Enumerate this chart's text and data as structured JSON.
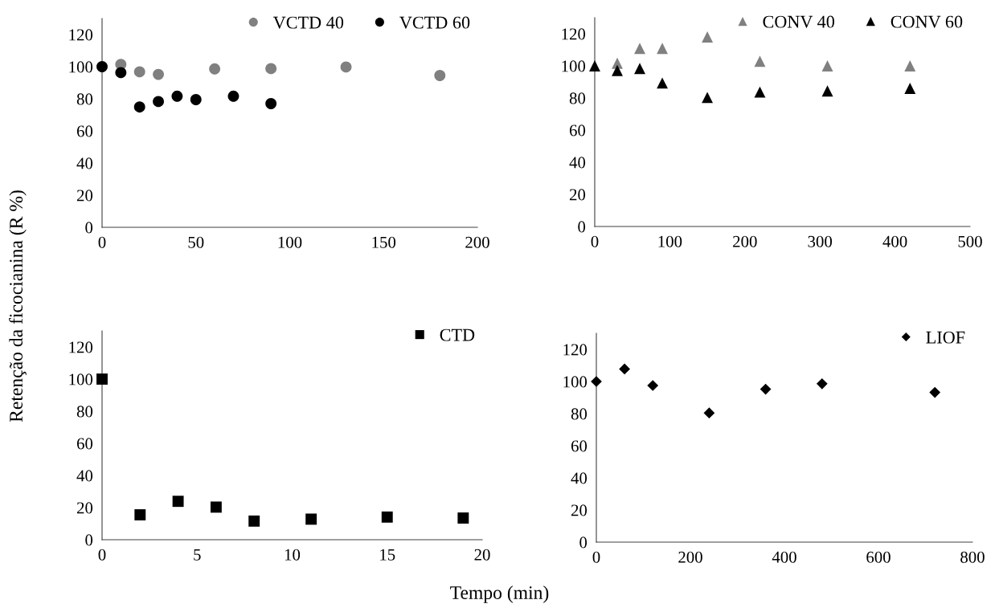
{
  "chart_data": [
    {
      "type": "scatter",
      "ylabel": "Retenção da ficocianina (R %)",
      "xlim": [
        0,
        200
      ],
      "xticks": [
        0,
        50,
        100,
        150,
        200
      ],
      "ylim": [
        0,
        130
      ],
      "yticks": [
        0,
        20,
        40,
        60,
        80,
        100,
        120
      ],
      "marker": "circle",
      "legend": "top right",
      "grid": false,
      "series": [
        {
          "name": "VCTD 40",
          "color": "#808080",
          "x": [
            10,
            20,
            30,
            60,
            90,
            130,
            180
          ],
          "values": [
            101.4,
            96.8,
            95.2,
            98.6,
            98.8,
            99.8,
            94.5
          ]
        },
        {
          "name": "VCTD 60",
          "color": "#000000",
          "x": [
            0,
            10,
            20,
            30,
            40,
            50,
            70,
            90
          ],
          "values": [
            100,
            96.3,
            74.9,
            78.3,
            81.6,
            79.5,
            81.6,
            77.0
          ]
        }
      ]
    },
    {
      "type": "scatter",
      "xlim": [
        0,
        500
      ],
      "xticks": [
        0,
        100,
        200,
        300,
        400,
        500
      ],
      "ylim": [
        0,
        130
      ],
      "yticks": [
        0,
        20,
        40,
        60,
        80,
        100,
        120
      ],
      "marker": "triangle",
      "legend": "top right",
      "grid": false,
      "series": [
        {
          "name": "CONV 40",
          "color": "#808080",
          "x": [
            30,
            60,
            90,
            150,
            220,
            310,
            420
          ],
          "values": [
            101.6,
            110.9,
            110.9,
            118,
            102.9,
            100,
            100
          ]
        },
        {
          "name": "CONV 60",
          "color": "#000000",
          "x": [
            0,
            30,
            60,
            90,
            150,
            220,
            310,
            420
          ],
          "values": [
            100,
            97.1,
            98.4,
            89.3,
            80.3,
            83.7,
            84.4,
            86
          ]
        }
      ]
    },
    {
      "type": "scatter",
      "xlabel": "Tempo (min)",
      "xlim": [
        0,
        20
      ],
      "xticks": [
        0,
        5,
        10,
        15,
        20
      ],
      "ylim": [
        0,
        130
      ],
      "yticks": [
        0,
        20,
        40,
        60,
        80,
        100,
        120
      ],
      "marker": "square",
      "legend": "top right",
      "grid": false,
      "series": [
        {
          "name": "CTD",
          "color": "#000000",
          "x": [
            0,
            2,
            4,
            6,
            8,
            11,
            15,
            19
          ],
          "values": [
            100,
            15.5,
            23.9,
            20.3,
            11.6,
            12.8,
            14.1,
            13.5
          ]
        }
      ]
    },
    {
      "type": "scatter",
      "xlim": [
        0,
        800
      ],
      "xticks": [
        0,
        200,
        400,
        600,
        800
      ],
      "ylim": [
        0,
        130
      ],
      "yticks": [
        0,
        20,
        40,
        60,
        80,
        100,
        120
      ],
      "marker": "diamond",
      "legend": "top right",
      "grid": false,
      "series": [
        {
          "name": "LIOF",
          "color": "#000000",
          "x": [
            0,
            60,
            120,
            240,
            360,
            480,
            720
          ],
          "values": [
            100,
            107.8,
            97.5,
            80.4,
            95.2,
            98.6,
            93.2
          ]
        }
      ]
    }
  ]
}
